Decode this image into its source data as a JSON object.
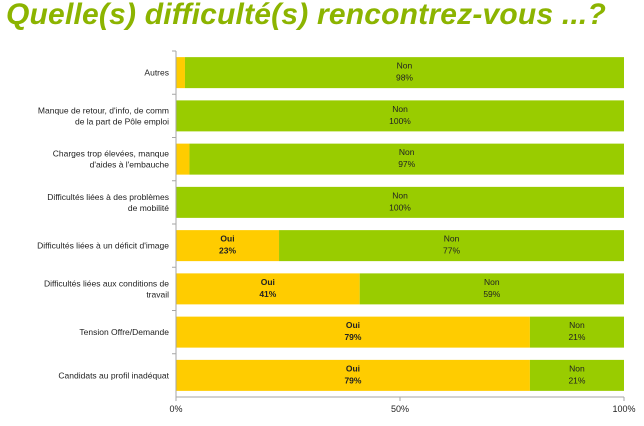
{
  "title": "Quelle(s) difficulté(s) rencontrez-vous ...?",
  "colors": {
    "oui": "#ffcc00",
    "non": "#99cc00",
    "title": "#8cb400",
    "axis": "#a6a6a6"
  },
  "chart_data": {
    "type": "bar",
    "orientation": "horizontal",
    "stacked": true,
    "categories": [
      [
        "Autres"
      ],
      [
        "Manque de retour, d'info, de comm",
        "de la part de Pôle emploi"
      ],
      [
        "Charges trop élevées, manque",
        "d'aides à l'embauche"
      ],
      [
        "Difficultés liées à des problèmes",
        "de mobilité"
      ],
      [
        "Difficultés liées à un déficit d'image"
      ],
      [
        "Difficultés liées aux conditions de",
        "travail"
      ],
      [
        "Tension Offre/Demande"
      ],
      [
        "Candidats au profil inadéquat"
      ]
    ],
    "series": [
      {
        "name": "Oui",
        "color": "#ffcc00",
        "values": [
          2,
          0,
          3,
          0,
          23,
          41,
          79,
          79
        ],
        "labels": [
          "",
          "",
          "",
          "",
          "23%",
          "41%",
          "79%",
          "79%"
        ],
        "label_visible": [
          false,
          false,
          false,
          false,
          true,
          true,
          true,
          true
        ]
      },
      {
        "name": "Non",
        "color": "#99cc00",
        "values": [
          98,
          100,
          97,
          100,
          77,
          59,
          21,
          21
        ],
        "labels": [
          "98%",
          "100%",
          "97%",
          "100%",
          "77%",
          "59%",
          "21%",
          "21%"
        ],
        "label_visible": [
          true,
          true,
          true,
          true,
          true,
          true,
          true,
          true
        ]
      }
    ],
    "x_ticks": [
      "0%",
      "50%",
      "100%"
    ],
    "xlim": [
      0,
      100
    ],
    "grid": false
  }
}
